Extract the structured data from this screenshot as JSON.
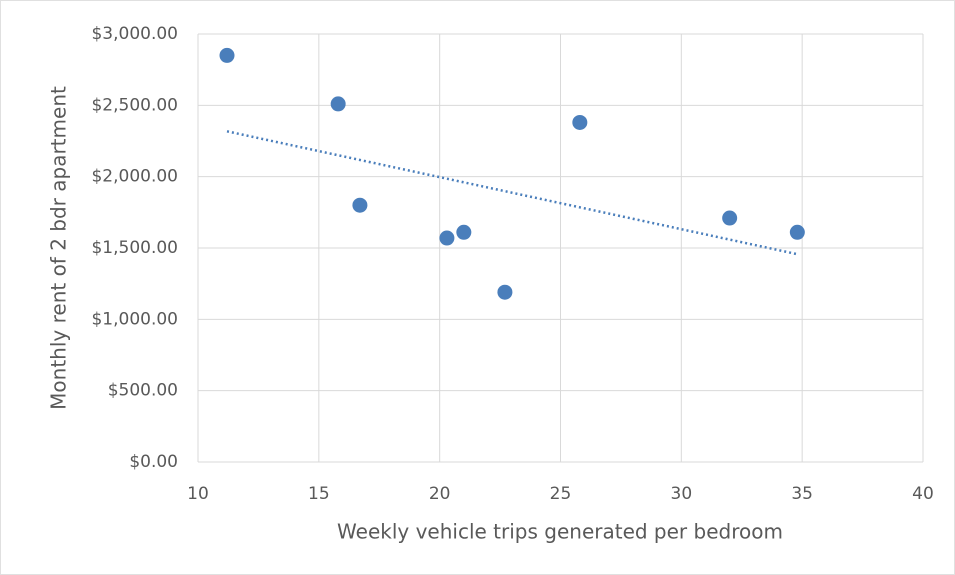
{
  "chart_data": {
    "type": "scatter",
    "x_label": "Weekly vehicle trips generated per bedroom",
    "y_label": "Monthly rent of 2 bdr apartment",
    "series": [
      {
        "color": "#4a7ebb",
        "x": [
          11.2,
          15.8,
          16.7,
          20.3,
          21.0,
          22.7,
          25.8,
          32.0,
          34.8
        ],
        "values": [
          2850,
          2510,
          1800,
          1570,
          1610,
          1190,
          2380,
          1710,
          1610
        ]
      }
    ],
    "trendline": "linear",
    "xlim": [
      10,
      40
    ],
    "xticks": [
      10,
      15,
      20,
      25,
      30,
      35,
      40
    ],
    "ylim": [
      0,
      3000
    ],
    "yticks": [
      {
        "value": 0,
        "label": "$0.00"
      },
      {
        "value": 500,
        "label": "$500.00"
      },
      {
        "value": 1000,
        "label": "$1,000.00"
      },
      {
        "value": 1500,
        "label": "$1,500.00"
      },
      {
        "value": 2000,
        "label": "$2,000.00"
      },
      {
        "value": 2500,
        "label": "$2,500.00"
      },
      {
        "value": 3000,
        "label": "$3,000.00"
      }
    ],
    "grid": true
  }
}
